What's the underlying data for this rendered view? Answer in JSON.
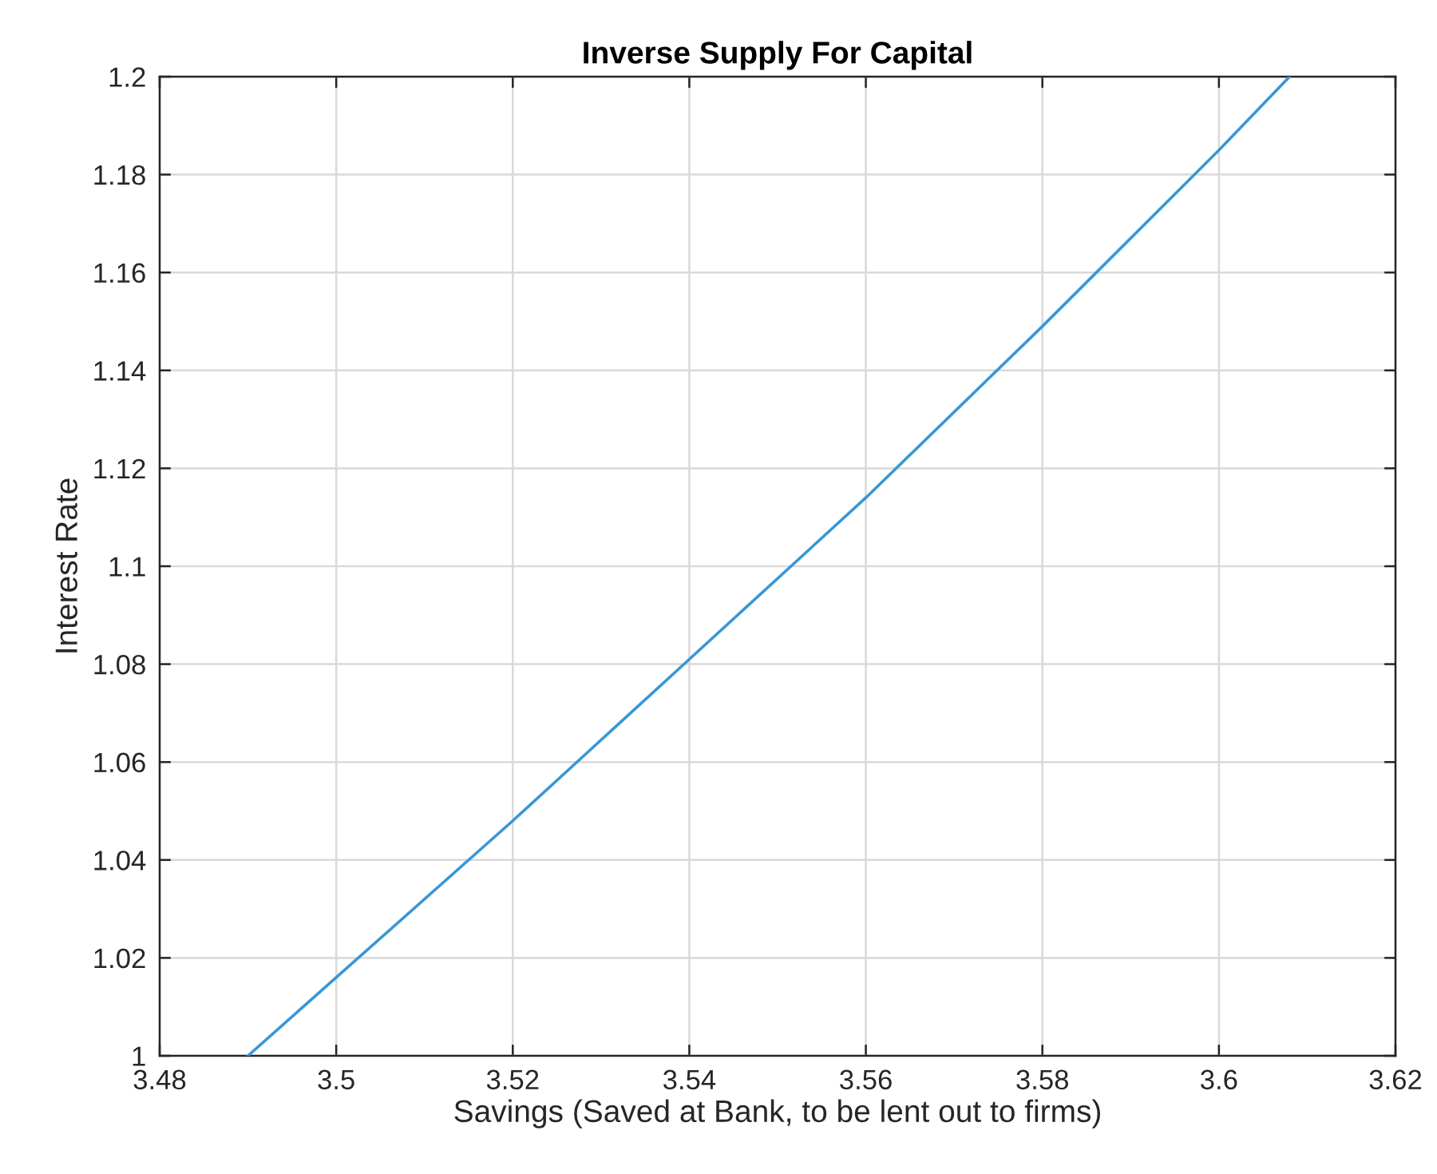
{
  "chart_data": {
    "type": "line",
    "title": "Inverse Supply For Capital",
    "xlabel": "Savings (Saved at Bank, to be lent out to firms)",
    "ylabel": "Interest Rate",
    "x": [
      3.49,
      3.5,
      3.52,
      3.54,
      3.56,
      3.58,
      3.6,
      3.608
    ],
    "values": [
      1.0,
      1.016,
      1.048,
      1.081,
      1.114,
      1.149,
      1.185,
      1.2
    ],
    "color": "#3897d6",
    "xlim": [
      3.48,
      3.62
    ],
    "xticks": [
      3.48,
      3.5,
      3.52,
      3.54,
      3.56,
      3.58,
      3.6,
      3.62
    ],
    "ylim": [
      1,
      1.2
    ],
    "yticks": [
      1,
      1.02,
      1.04,
      1.06,
      1.08,
      1.1,
      1.12,
      1.14,
      1.16,
      1.18,
      1.2
    ],
    "grid": true
  }
}
